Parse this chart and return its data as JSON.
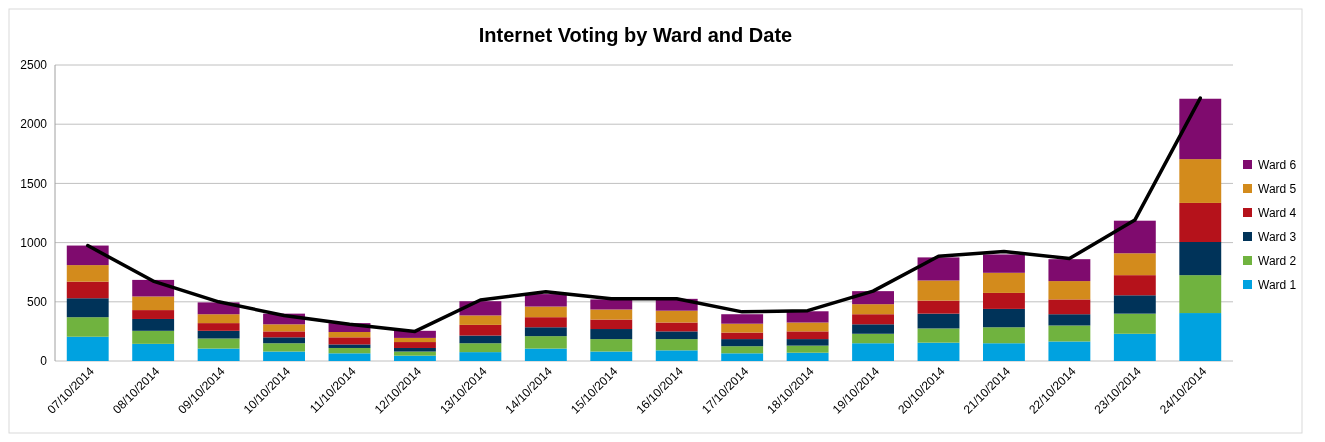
{
  "chart_data": {
    "type": "bar",
    "title": "Internet Voting by Ward and Date",
    "stacked": true,
    "categories": [
      "07/10/2014",
      "08/10/2014",
      "09/10/2014",
      "10/10/2014",
      "11/10/2014",
      "12/10/2014",
      "13/10/2014",
      "14/10/2014",
      "15/10/2014",
      "16/10/2014",
      "17/10/2014",
      "18/10/2014",
      "19/10/2014",
      "20/10/2014",
      "21/10/2014",
      "22/10/2014",
      "23/10/2014",
      "24/10/2014"
    ],
    "series": [
      {
        "name": "Ward 1",
        "color": "#00a2e0",
        "values": [
          205,
          145,
          105,
          80,
          65,
          45,
          75,
          105,
          80,
          90,
          65,
          70,
          150,
          155,
          150,
          165,
          230,
          405
        ]
      },
      {
        "name": "Ward 2",
        "color": "#70b33f",
        "values": [
          165,
          110,
          85,
          70,
          45,
          35,
          75,
          105,
          105,
          95,
          60,
          60,
          80,
          120,
          135,
          135,
          170,
          320
        ]
      },
      {
        "name": "Ward 3",
        "color": "#003359",
        "values": [
          160,
          100,
          65,
          50,
          30,
          30,
          65,
          75,
          85,
          65,
          60,
          55,
          80,
          125,
          155,
          95,
          155,
          280
        ]
      },
      {
        "name": "Ward 4",
        "color": "#b5121b",
        "values": [
          140,
          75,
          65,
          50,
          60,
          50,
          90,
          85,
          80,
          75,
          55,
          65,
          85,
          110,
          135,
          125,
          170,
          330
        ]
      },
      {
        "name": "Ward 5",
        "color": "#d38b1c",
        "values": [
          140,
          115,
          75,
          60,
          45,
          35,
          80,
          90,
          85,
          100,
          75,
          75,
          85,
          170,
          170,
          155,
          185,
          370
        ]
      },
      {
        "name": "Ward 6",
        "color": "#7f0b6e",
        "values": [
          165,
          140,
          100,
          90,
          75,
          60,
          120,
          105,
          85,
          100,
          80,
          95,
          110,
          195,
          155,
          185,
          275,
          510
        ]
      },
      {
        "type": "line",
        "color": "#000000",
        "values": [
          975,
          675,
          500,
          385,
          310,
          250,
          515,
          585,
          525,
          525,
          415,
          425,
          590,
          885,
          925,
          865,
          1190,
          2220
        ]
      }
    ],
    "ylim": [
      0,
      2500
    ],
    "yticks": [
      0,
      500,
      1000,
      1500,
      2000,
      2500
    ],
    "grid": "y",
    "legend": "right",
    "marker": "none",
    "line_style": "solid"
  }
}
